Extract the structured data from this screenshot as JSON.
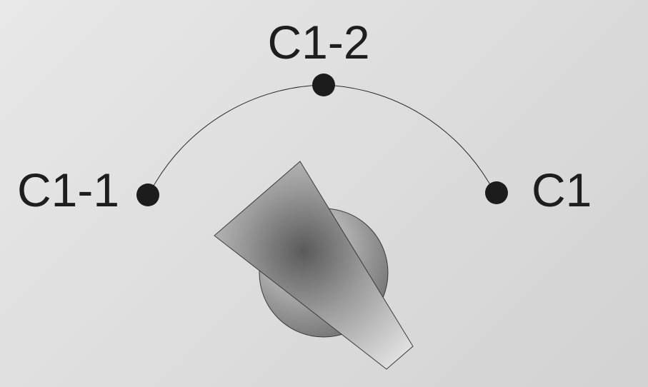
{
  "selector": {
    "positions": [
      {
        "id": "c1-1",
        "label": "C1-1"
      },
      {
        "id": "c1-2",
        "label": "C1-2"
      },
      {
        "id": "c1",
        "label": "C1"
      }
    ],
    "selected": "C1-1"
  },
  "colors": {
    "background": "#dcdcdc",
    "dot": "#1c1c1c",
    "text": "#1e1e1e",
    "arc": "#2a2a2a",
    "knob_dark": "#5a5a5a",
    "knob_light": "#e0e0e0"
  }
}
